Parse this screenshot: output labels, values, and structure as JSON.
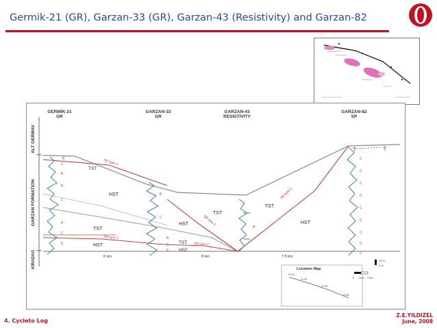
{
  "slide": {
    "title": "Germik-21 (GR), Garzan-33 (GR), Garzan-43 (Resistivity) and Garzan-82",
    "footer_left": "4. Cycleto Log",
    "footer_author": "Z.E.YILDIZEL",
    "footer_date": "June, 2008",
    "accent_color": "#c1121f",
    "title_color": "#1f4aa6"
  },
  "logo": {
    "icon": "university-logo-icon"
  },
  "section": {
    "wells": [
      {
        "name": "GERMİK-21",
        "log": "GR"
      },
      {
        "name": "GARZAN-33",
        "log": "GR"
      },
      {
        "name": "GARZAN-43",
        "log": "RESISTIVITY"
      },
      {
        "name": "GARZAN-82",
        "log": "SP"
      }
    ],
    "formations": {
      "upper": "ALT GERMAV",
      "middle": "GARZAN FORMATION",
      "lower": "KIRADAG"
    },
    "tracts": {
      "tst1": "TST",
      "hst1": "HST",
      "tst2": "TST",
      "hst2": "HST",
      "tst3": "TST",
      "hst3": "HST",
      "tst4": "TST",
      "hst4": "HST",
      "tst5": "TST",
      "hst5": "HST",
      "tst6": "TST",
      "hst6": "HST"
    },
    "boundaries": {
      "sb1": "SB type 2",
      "sb2": "SB type 2",
      "sb3": "SB type 2",
      "sb4": "SB type 2",
      "sb5": "SB type 2"
    },
    "facies": {
      "b1": "B",
      "c1": "C",
      "b2": "B",
      "b3": "B",
      "c2": "C",
      "a1": "A",
      "c3": "C",
      "e1": "E",
      "b4": "B",
      "c4": "C",
      "a2": "A",
      "c5": "C",
      "e2": "E",
      "b5": "B",
      "c6": "C",
      "c7": "C",
      "c8": "C",
      "c9": "C",
      "c10": "C",
      "c11": "C",
      "c12": "C",
      "c13": "C",
      "c14": "C"
    },
    "distances": [
      "6 km",
      "8 km",
      "7.5 km"
    ],
    "question_marks": [
      "?",
      "?"
    ],
    "location_map": {
      "title": "Location Map",
      "labels": [
        "Gr-21",
        "Gr-33",
        "Gr-43",
        "Gr-82"
      ]
    },
    "scale": {
      "vertical": "10 m",
      "zero": "0 m",
      "horizontal": [
        "0",
        "1 km",
        "2 km"
      ]
    }
  }
}
